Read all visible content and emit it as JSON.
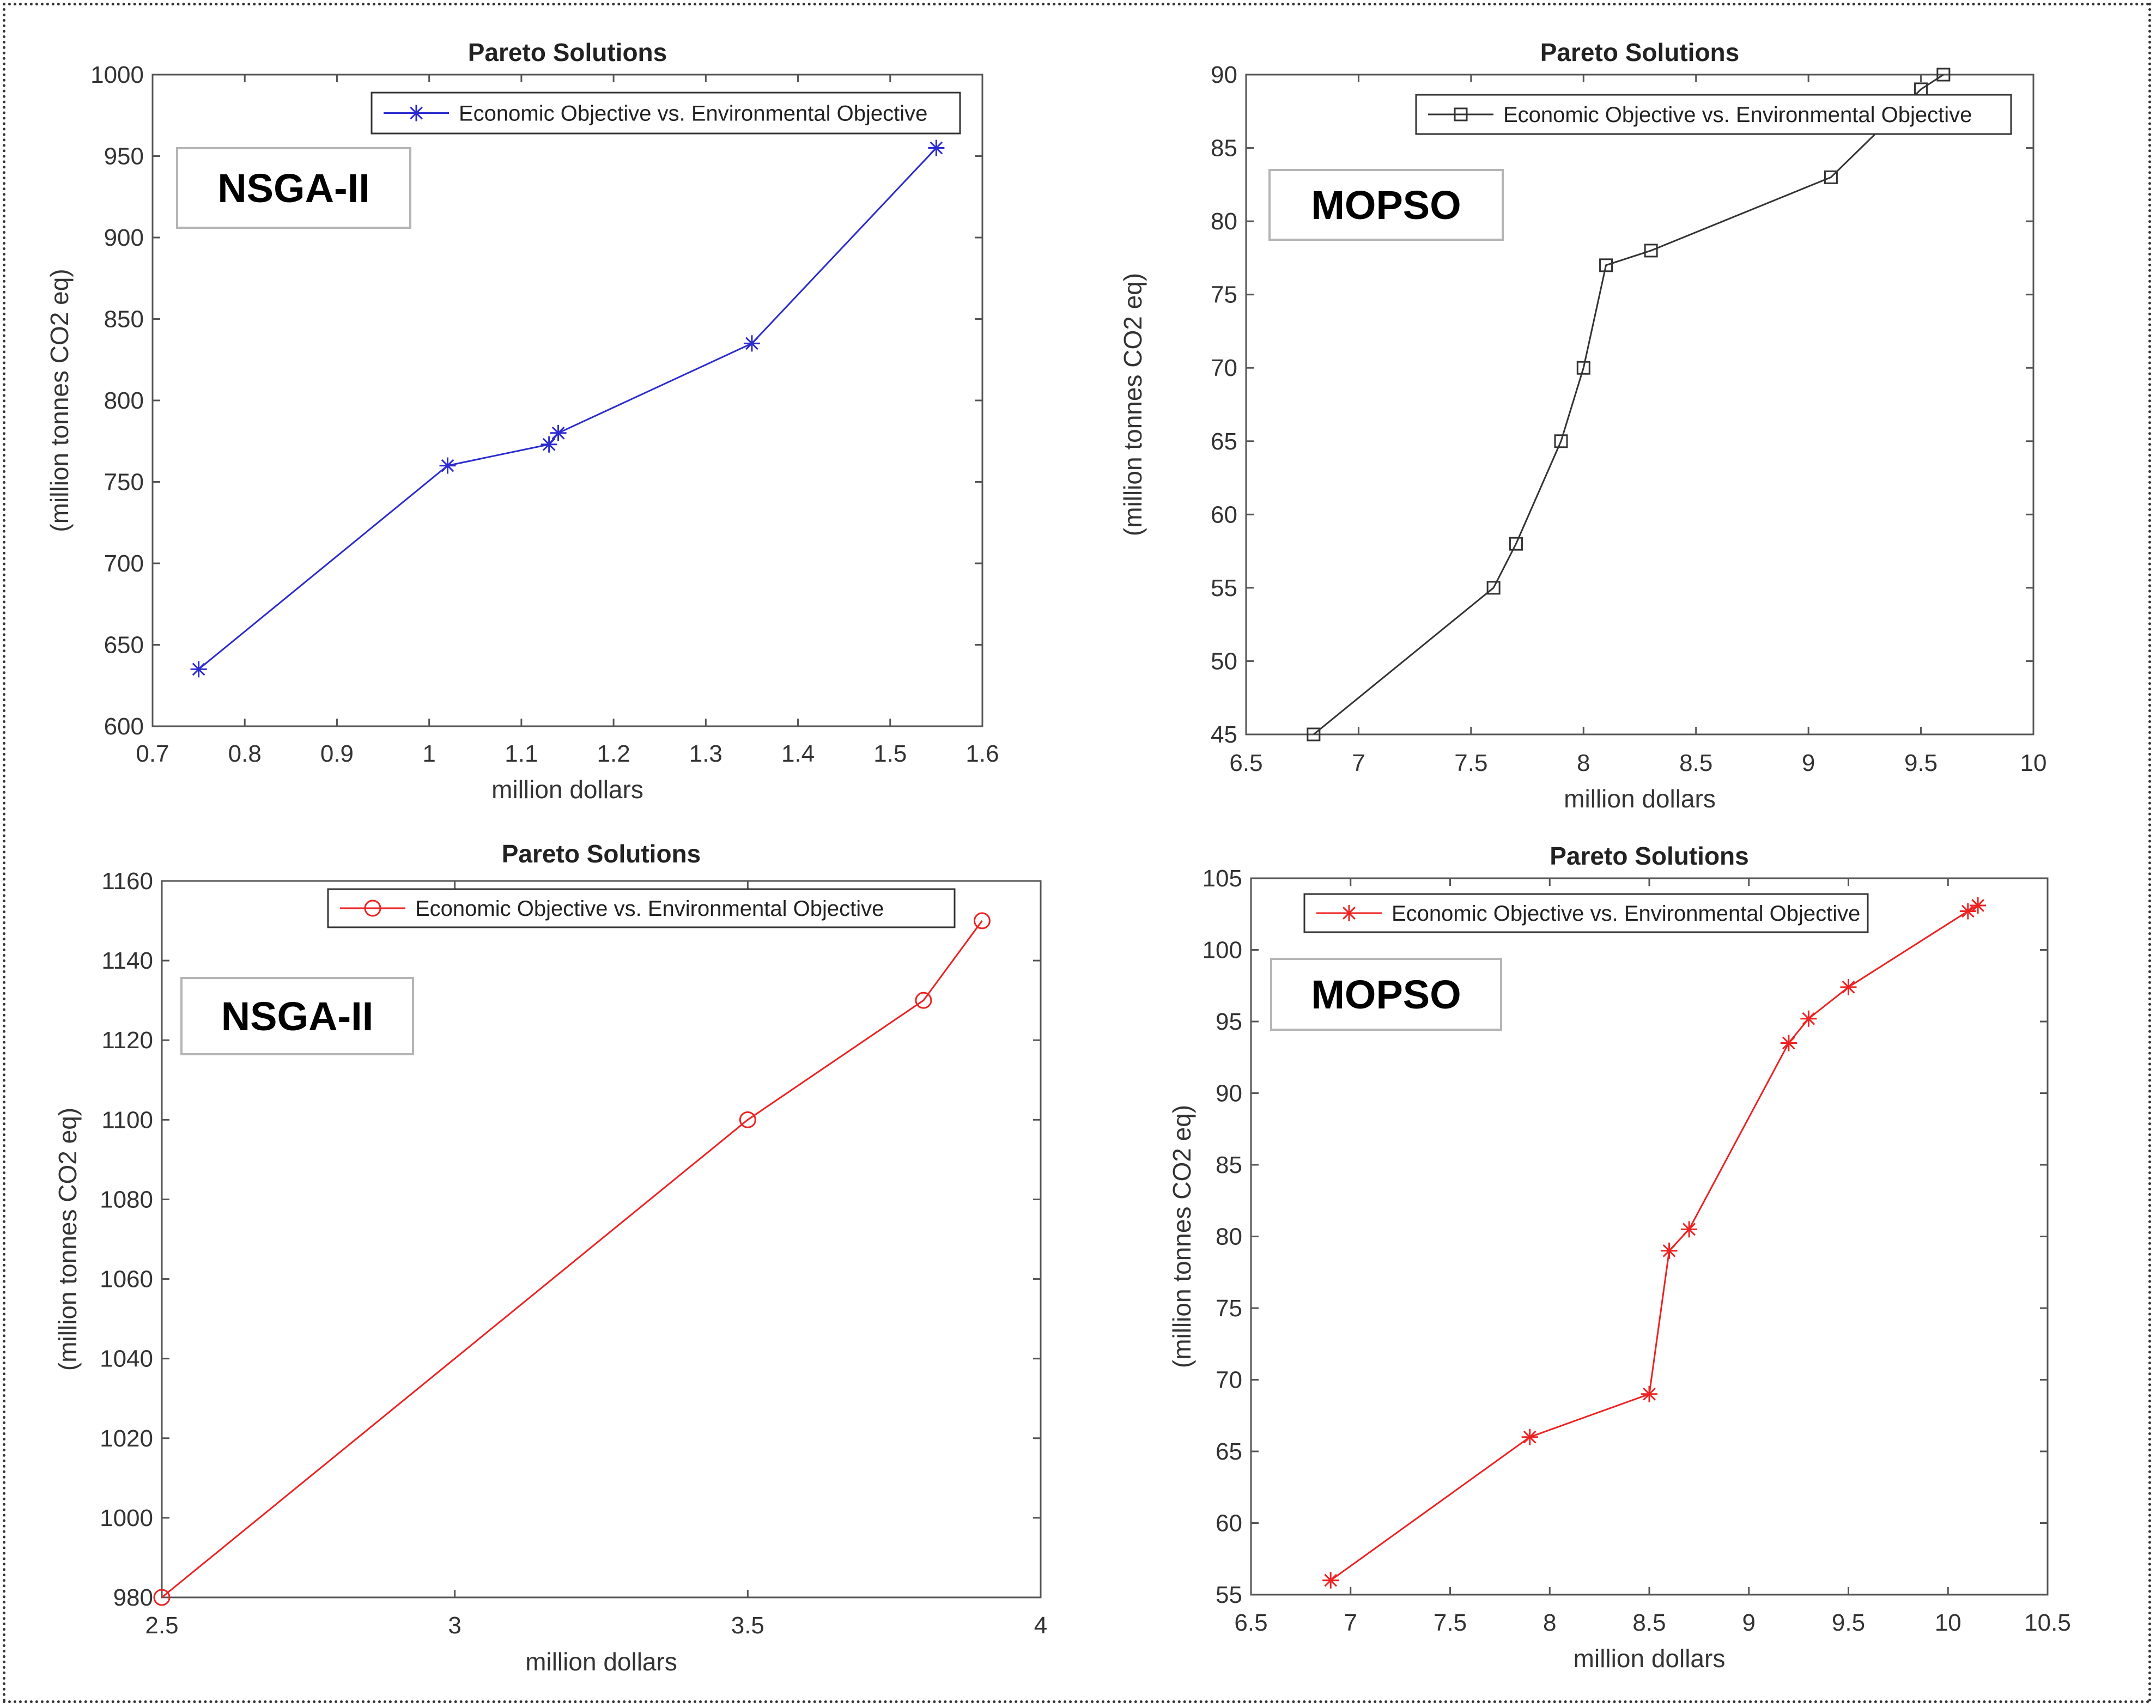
{
  "chart_data": [
    {
      "type": "line",
      "title": "Pareto Solutions",
      "xlabel": "million dollars",
      "ylabel": "(million tonnes CO2 eq)",
      "xlim": [
        0.7,
        1.6
      ],
      "ylim": [
        600,
        1000
      ],
      "xticks": [
        "0.7",
        "0.8",
        "0.9",
        "1",
        "1.1",
        "1.2",
        "1.3",
        "1.4",
        "1.5",
        "1.6"
      ],
      "yticks": [
        "600",
        "650",
        "700",
        "750",
        "800",
        "850",
        "900",
        "950",
        "1000"
      ],
      "annotation": "NSGA-II",
      "legend_position": "top-right",
      "grid": false,
      "series": [
        {
          "name": "Economic Objective vs. Environmental Objective",
          "color": "#2b2bcf",
          "marker": "asterisk",
          "x": [
            0.75,
            1.02,
            1.13,
            1.14,
            1.35,
            1.55
          ],
          "y": [
            635,
            760,
            773,
            780,
            835,
            955
          ]
        }
      ]
    },
    {
      "type": "line",
      "title": "Pareto Solutions",
      "xlabel": "million dollars",
      "ylabel": "(million tonnes CO2 eq)",
      "xlim": [
        6.5,
        10
      ],
      "ylim": [
        45,
        90
      ],
      "xticks": [
        "6.5",
        "7",
        "7.5",
        "8",
        "8.5",
        "9",
        "9.5",
        "10"
      ],
      "yticks": [
        "45",
        "50",
        "55",
        "60",
        "65",
        "70",
        "75",
        "80",
        "85",
        "90"
      ],
      "annotation": "MOPSO",
      "legend_position": "top-right",
      "grid": false,
      "series": [
        {
          "name": "Economic Objective vs. Environmental Objective",
          "color": "#333333",
          "marker": "square",
          "x": [
            6.8,
            7.6,
            7.7,
            7.9,
            8.0,
            8.1,
            8.3,
            9.1,
            9.5,
            9.6
          ],
          "y": [
            45,
            55,
            58,
            65,
            70,
            77,
            78,
            83,
            89,
            90
          ]
        }
      ]
    },
    {
      "type": "line",
      "title": "Pareto Solutions",
      "xlabel": "million dollars",
      "ylabel": "(million tonnes CO2 eq)",
      "xlim": [
        2.5,
        4
      ],
      "ylim": [
        980,
        1160
      ],
      "xticks": [
        "2.5",
        "3",
        "3.5",
        "4"
      ],
      "yticks": [
        "980",
        "1000",
        "1020",
        "1040",
        "1060",
        "1080",
        "1100",
        "1120",
        "1140",
        "1160"
      ],
      "annotation": "NSGA-II",
      "legend_position": "top-right",
      "grid": false,
      "series": [
        {
          "name": "Economic Objective vs. Environmental Objective",
          "color": "#ee2222",
          "marker": "circle",
          "x": [
            2.5,
            3.5,
            3.8,
            3.9
          ],
          "y": [
            980,
            1100,
            1130,
            1150
          ]
        }
      ]
    },
    {
      "type": "line",
      "title": "Pareto Solutions",
      "xlabel": "million dollars",
      "ylabel": "(million tonnes CO2 eq)",
      "xlim": [
        6.5,
        10.5
      ],
      "ylim": [
        55,
        105
      ],
      "xticks": [
        "6.5",
        "7",
        "7.5",
        "8",
        "8.5",
        "9",
        "9.5",
        "10",
        "10.5"
      ],
      "yticks": [
        "55",
        "60",
        "65",
        "70",
        "75",
        "80",
        "85",
        "90",
        "95",
        "100",
        "105"
      ],
      "annotation": "MOPSO",
      "legend_position": "top-left",
      "grid": false,
      "series": [
        {
          "name": "Economic Objective vs. Environmental Objective",
          "color": "#ee2222",
          "marker": "asterisk",
          "x": [
            6.9,
            7.9,
            8.5,
            8.6,
            8.7,
            9.2,
            9.3,
            9.5,
            10.1,
            10.15
          ],
          "y": [
            56,
            66,
            69,
            79,
            80.5,
            93.5,
            95.2,
            97.4,
            102.7,
            103.1
          ]
        }
      ]
    }
  ]
}
